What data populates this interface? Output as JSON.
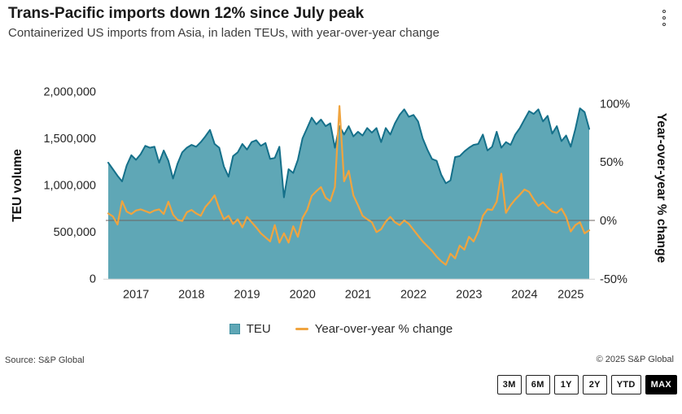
{
  "header": {
    "title": "Trans-Pacific imports down 12% since July peak",
    "subtitle": "Containerized US imports from Asia, in laden TEUs, with year-over-year change"
  },
  "chart_data": {
    "type": "area+line",
    "x_frequency": "monthly",
    "x_start_month": "2017-01",
    "x_end_month": "2025-09",
    "x_tick_labels": [
      "2017",
      "2018",
      "2019",
      "2020",
      "2021",
      "2022",
      "2023",
      "2024",
      "2025"
    ],
    "left_axis": {
      "title": "TEU volume",
      "range": [
        0,
        2000000
      ],
      "ticks": [
        0,
        500000,
        1000000,
        1500000,
        2000000
      ],
      "tick_labels": [
        "0",
        "500,000",
        "1,000,000",
        "1,500,000",
        "2,000,000"
      ]
    },
    "right_axis": {
      "title": "Year-over-year % change",
      "range": [
        -50,
        100
      ],
      "ticks": [
        -50,
        0,
        50,
        100
      ],
      "tick_labels": [
        "-50%",
        "0%",
        "50%",
        "100%"
      ],
      "negative_tick_color": "#e4002b"
    },
    "zero_line_value": 0,
    "series": [
      {
        "name": "TEU",
        "type": "area",
        "axis": "left",
        "fill_color": "#5fa7b6",
        "stroke_color": "#15708a",
        "values": [
          1240000,
          1170000,
          1100000,
          1040000,
          1210000,
          1320000,
          1270000,
          1330000,
          1420000,
          1400000,
          1410000,
          1240000,
          1370000,
          1260000,
          1070000,
          1230000,
          1350000,
          1400000,
          1430000,
          1410000,
          1460000,
          1520000,
          1590000,
          1440000,
          1400000,
          1200000,
          1090000,
          1310000,
          1350000,
          1440000,
          1380000,
          1460000,
          1480000,
          1420000,
          1450000,
          1280000,
          1290000,
          1410000,
          870000,
          1170000,
          1130000,
          1270000,
          1500000,
          1610000,
          1720000,
          1650000,
          1700000,
          1630000,
          1660000,
          1400000,
          1630000,
          1540000,
          1630000,
          1520000,
          1570000,
          1530000,
          1610000,
          1560000,
          1610000,
          1460000,
          1610000,
          1540000,
          1660000,
          1750000,
          1810000,
          1730000,
          1750000,
          1680000,
          1500000,
          1380000,
          1280000,
          1260000,
          1110000,
          1020000,
          1050000,
          1300000,
          1310000,
          1360000,
          1400000,
          1430000,
          1440000,
          1540000,
          1370000,
          1410000,
          1570000,
          1400000,
          1460000,
          1430000,
          1540000,
          1610000,
          1700000,
          1790000,
          1760000,
          1810000,
          1680000,
          1740000,
          1550000,
          1630000,
          1470000,
          1530000,
          1410000,
          1600000,
          1820000,
          1780000,
          1600000
        ]
      },
      {
        "name": "Year-over-year % change",
        "type": "line",
        "axis": "right",
        "color": "#f0a43f",
        "values": [
          6,
          3.5,
          -3.5,
          16.5,
          7.5,
          5.5,
          8.5,
          9.5,
          8,
          6.5,
          8.5,
          9.5,
          5.5,
          16,
          5,
          0.5,
          -0.5,
          7,
          9,
          6,
          4,
          11.5,
          16,
          21.5,
          10,
          1,
          4,
          -3,
          1,
          -6,
          3,
          -1.5,
          -6,
          -11,
          -14.5,
          -18,
          -4,
          -19,
          -11,
          -19,
          -5,
          -14,
          2,
          9,
          21,
          25,
          28.5,
          19.5,
          16.5,
          28.5,
          98,
          33.5,
          42.5,
          21.5,
          13,
          4,
          1,
          -1.5,
          -10,
          -7.5,
          -1,
          3,
          -1.5,
          -4,
          0,
          -3,
          -8,
          -13,
          -18,
          -22,
          -26,
          -31,
          -35,
          -38,
          -28.5,
          -32.5,
          -21.5,
          -25,
          -14,
          -18,
          -9.5,
          4,
          9.5,
          9,
          16,
          40,
          6.5,
          13,
          18,
          22,
          26.5,
          24.5,
          18,
          12.5,
          15.5,
          11,
          7.5,
          6.5,
          10,
          3,
          -9.5,
          -4,
          -1.5,
          -11,
          -8.5
        ]
      }
    ]
  },
  "legend": {
    "items": [
      {
        "label": "TEU",
        "swatch": "square",
        "color": "#5fa7b6"
      },
      {
        "label": "Year-over-year % change",
        "swatch": "line",
        "color": "#f0a43f"
      }
    ]
  },
  "footer": {
    "source": "Source: S&P Global",
    "copyright": "© 2025 S&P Global"
  },
  "range_selector": {
    "options": [
      "3M",
      "6M",
      "1Y",
      "2Y",
      "YTD",
      "MAX"
    ],
    "active": "MAX"
  }
}
